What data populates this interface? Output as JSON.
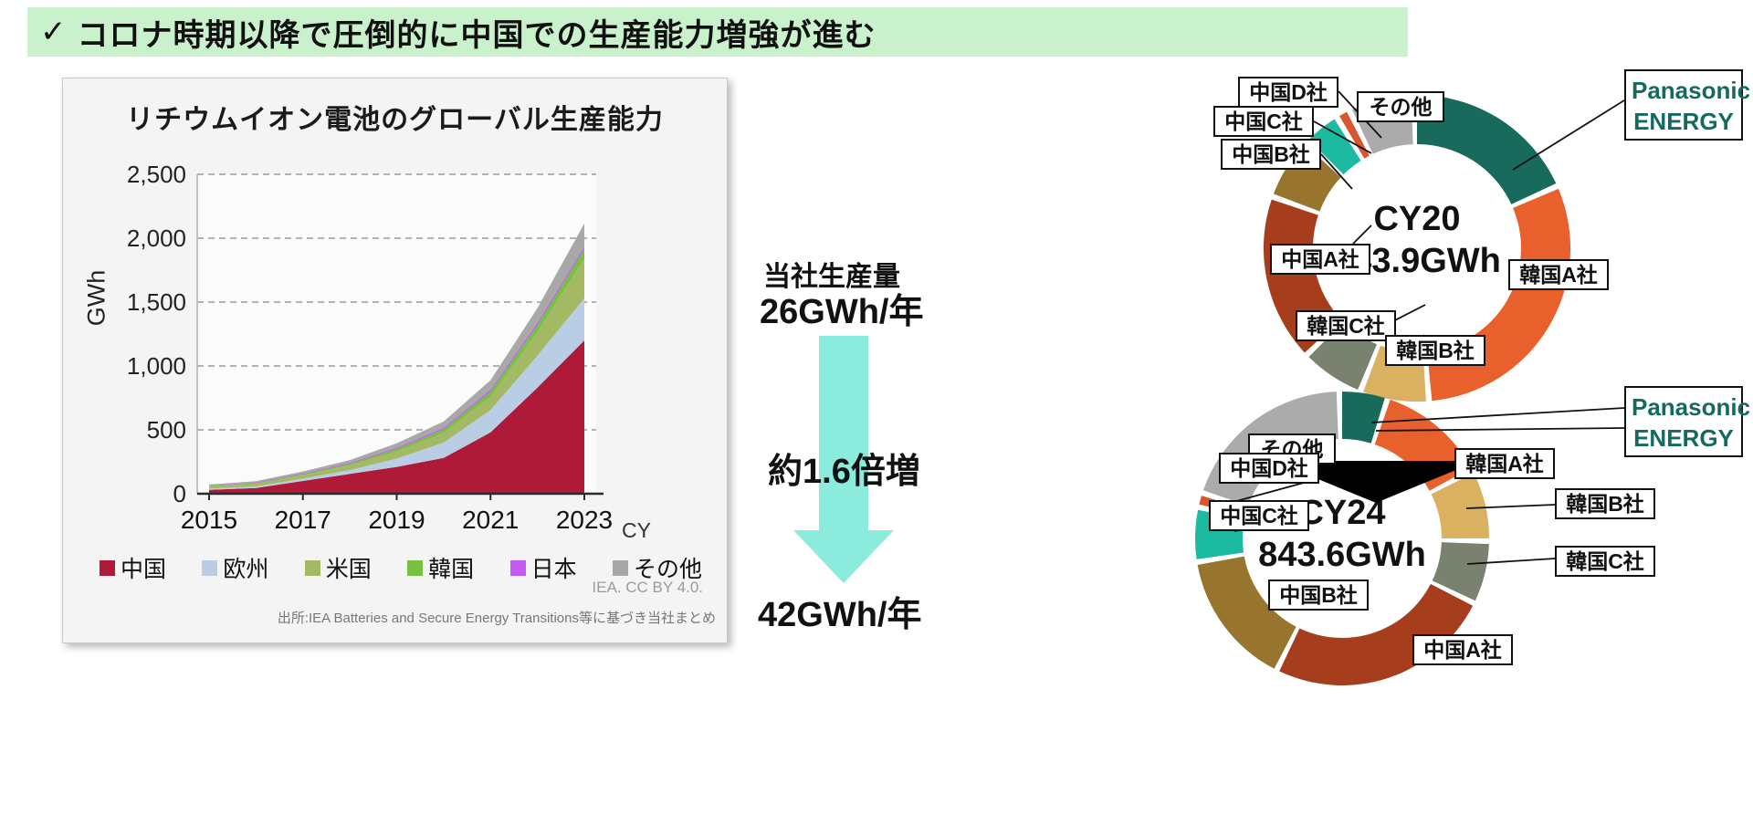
{
  "header": {
    "check": "✓",
    "title": "コロナ時期以降で圧倒的に中国での生産能力増強が進む",
    "bg_color": "#c8f1cc"
  },
  "left_chart": {
    "title": "リチウムイオン電池のグローバル生産能力",
    "y_axis_label": "GWh",
    "x_axis_note": "CY",
    "attribution": "IEA. CC BY 4.0.",
    "source": "出所:IEA  Batteries and Secure Energy Transitions等に基づき当社まとめ",
    "legend": [
      {
        "label": "中国",
        "color": "#ae1a38"
      },
      {
        "label": "欧州",
        "color": "#b9cde5"
      },
      {
        "label": "米国",
        "color": "#a3b964"
      },
      {
        "label": "韓国",
        "color": "#77c043"
      },
      {
        "label": "日本",
        "color": "#c45af2"
      },
      {
        "label": "その他",
        "color": "#a8a8a8"
      }
    ]
  },
  "chart_data": {
    "type": "area",
    "stacked": true,
    "title": "リチウムイオン電池のグローバル生産能力",
    "ylabel": "GWh",
    "xlabel": "CY",
    "x": [
      2015,
      2016,
      2017,
      2018,
      2019,
      2020,
      2021,
      2022,
      2023
    ],
    "x_ticks": [
      "2015",
      "2017",
      "2019",
      "2021",
      "2023"
    ],
    "ylim": [
      0,
      2500
    ],
    "y_ticks": [
      "0",
      "500",
      "1,000",
      "1,500",
      "2,000",
      "2,500"
    ],
    "grid": "dashed-horizontal",
    "legend_position": "bottom",
    "series": [
      {
        "name": "中国",
        "color": "#ae1a38",
        "values": [
          30,
          45,
          100,
          155,
          210,
          280,
          480,
          830,
          1200
        ]
      },
      {
        "name": "欧州",
        "color": "#b9cde5",
        "values": [
          10,
          12,
          18,
          30,
          65,
          120,
          175,
          250,
          330
        ]
      },
      {
        "name": "米国",
        "color": "#a3b964",
        "values": [
          18,
          22,
          28,
          38,
          55,
          75,
          105,
          185,
          310
        ]
      },
      {
        "name": "韓国",
        "color": "#77c043",
        "values": [
          4,
          5,
          8,
          12,
          20,
          28,
          38,
          55,
          75
        ]
      },
      {
        "name": "日本",
        "color": "#c45af2",
        "values": [
          4,
          5,
          6,
          8,
          10,
          12,
          15,
          18,
          20
        ]
      },
      {
        "name": "その他",
        "color": "#a8a8a8",
        "values": [
          6,
          9,
          14,
          20,
          35,
          50,
          75,
          115,
          180
        ]
      }
    ]
  },
  "middle": {
    "production_label": "当社生産量",
    "current_value": "26GWh/年",
    "growth_label": "約1.6倍増",
    "future_value": "42GWh/年",
    "arrow_color": "#8bebdd"
  },
  "donuts": {
    "cy20": {
      "center_line1": "CY20",
      "center_line2": "143.9GWh",
      "total_gwh": 143.9,
      "segments": [
        {
          "label": "Panasonic ENERGY",
          "color": "#186a5c",
          "pct": 18.5
        },
        {
          "label": "韓国A社",
          "color": "#e8612c",
          "pct": 30.5
        },
        {
          "label": "韓国B社",
          "color": "#d9b160",
          "pct": 6.8
        },
        {
          "label": "韓国C社",
          "color": "#78826f",
          "pct": 6.3
        },
        {
          "label": "中国A社",
          "color": "#a63d1d",
          "pct": 17.5
        },
        {
          "label": "中国B社",
          "color": "#97752f",
          "pct": 6.3
        },
        {
          "label": "中国C社",
          "color": "#1cbba1",
          "pct": 3.5
        },
        {
          "label": "中国D社",
          "color": "#d9552f",
          "pct": 0.9
        },
        {
          "label": "その他",
          "color": "#ababab",
          "pct": 6.5
        }
      ],
      "callouts": {
        "china_d": "中国D社",
        "china_c": "中国C社",
        "china_b": "中国B社",
        "china_a": "中国A社",
        "others": "その他",
        "panasonic_1": "Panasonic",
        "panasonic_2": "ENERGY",
        "korea_a": "韓国A社",
        "korea_b": "韓国B社",
        "korea_c": "韓国C社"
      }
    },
    "cy24": {
      "center_line1": "CY24",
      "center_line2": "843.6GWh",
      "total_gwh": 843.6,
      "segments": [
        {
          "label": "Panasonic ENERGY",
          "color": "#186a5c",
          "pct": 4.8
        },
        {
          "label": "韓国A社",
          "color": "#e8612c",
          "pct": 12.0
        },
        {
          "label": "韓国B社",
          "color": "#d9b160",
          "pct": 7.5
        },
        {
          "label": "韓国C社",
          "color": "#78826f",
          "pct": 6.5
        },
        {
          "label": "中国A社",
          "color": "#a63d1d",
          "pct": 25.0
        },
        {
          "label": "中国B社",
          "color": "#97752f",
          "pct": 14.8
        },
        {
          "label": "中国C社",
          "color": "#1cbba1",
          "pct": 5.5
        },
        {
          "label": "中国D社",
          "color": "#d9552f",
          "pct": 1.0
        },
        {
          "label": "その他",
          "color": "#ababab",
          "pct": 19.5
        }
      ],
      "callouts": {
        "china_d": "中国D社",
        "china_c": "中国C社",
        "china_b": "中国B社",
        "china_a": "中国A社",
        "others": "その他",
        "panasonic_1": "Panasonic",
        "panasonic_2": "ENERGY",
        "korea_a": "韓国A社",
        "korea_b": "韓国B社",
        "korea_c": "韓国C社"
      }
    }
  }
}
